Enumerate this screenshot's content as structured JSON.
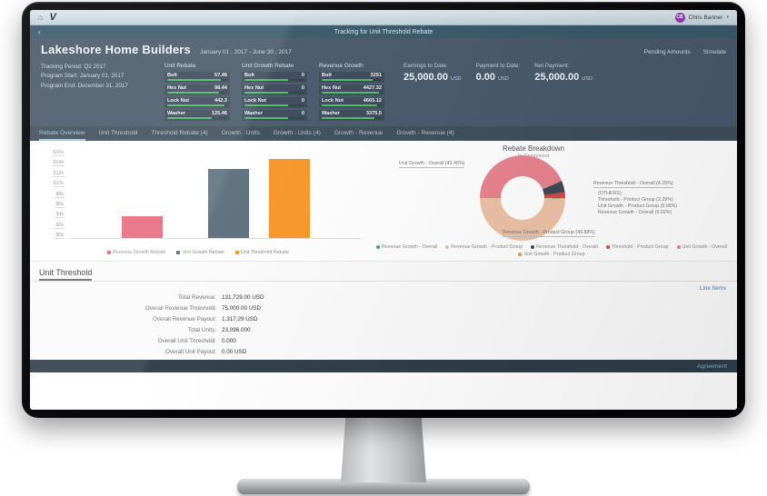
{
  "topbar": {
    "logo": "V",
    "user_initials": "CB",
    "user_name": "Chris Banner"
  },
  "titlebar": {
    "back_icon": "‹",
    "title": "Tracking for Unit Threshold Rebate"
  },
  "header": {
    "account_name": "Lakeshore Home Builders",
    "date_range": "January 01 , 2017 - June 30 , 2017",
    "action_pending": "Pending Amounts",
    "action_simulate": "Simulate",
    "tracking_period_label": "Tracking Period:",
    "tracking_period": "Q2 2017",
    "program_start_label": "Program Start:",
    "program_start": "January 01, 2017",
    "program_end_label": "Program End:",
    "program_end": "December 31, 2017",
    "panels": [
      {
        "title": "Unit Rebate",
        "rows": [
          {
            "name": "Bolt",
            "value": "57.46",
            "pct": 90
          },
          {
            "name": "Hex Nut",
            "value": "98.44",
            "pct": 86
          },
          {
            "name": "Lock Nut",
            "value": "442.3",
            "pct": 95
          },
          {
            "name": "Washer",
            "value": "125.46",
            "pct": 74
          }
        ]
      },
      {
        "title": "Unit Growth Rebate",
        "rows": [
          {
            "name": "Bolt",
            "value": "0",
            "pct": 72
          },
          {
            "name": "Hex Nut",
            "value": "0",
            "pct": 72
          },
          {
            "name": "Lock Nut",
            "value": "0",
            "pct": 72
          },
          {
            "name": "Washer",
            "value": "0",
            "pct": 72
          }
        ]
      },
      {
        "title": "Revenue Growth",
        "rows": [
          {
            "name": "Bolt",
            "value": "3251",
            "pct": 85
          },
          {
            "name": "Hex Nut",
            "value": "4427.32",
            "pct": 95
          },
          {
            "name": "Lock Nut",
            "value": "4665.12",
            "pct": 93
          },
          {
            "name": "Washer",
            "value": "3375.5",
            "pct": 88
          }
        ]
      }
    ],
    "summary": [
      {
        "label": "Earnings to Date:",
        "value": "25,000.00",
        "unit": "USD"
      },
      {
        "label": "Payment to Date:",
        "value": "0.00",
        "unit": "USD"
      },
      {
        "label": "Net Payment:",
        "value": "25,000.00",
        "unit": "USD"
      }
    ]
  },
  "tabs": [
    {
      "label": "Rebate Overview"
    },
    {
      "label": "Unit Threshold"
    },
    {
      "label": "Threshold Rebate (4)"
    },
    {
      "label": "Growth - Units"
    },
    {
      "label": "Growth - Units (4)"
    },
    {
      "label": "Growth - Revenue"
    },
    {
      "label": "Growth - Revenue (4)"
    }
  ],
  "chart_data": [
    {
      "type": "bar",
      "categories": [
        "Revenue Growth Rebate",
        "Unit Growth Rebate",
        "Unit Threshold Rebate"
      ],
      "values": [
        3900,
        12500,
        14300
      ],
      "colors": [
        "#e76a7e",
        "#5d6f7d",
        "#f89728"
      ],
      "title": "",
      "xlabel": "",
      "ylabel": "",
      "ylim": [
        0,
        16000
      ],
      "yticks": [
        "$16k",
        "$14k",
        "$12k",
        "$10k",
        "$8k",
        "$6k",
        "$4k",
        "$2k",
        "$0k"
      ],
      "grid": false,
      "legend_position": "bottom"
    },
    {
      "type": "pie",
      "title": "Rebate Breakdown",
      "subtitle": "by Component",
      "slices": [
        {
          "label": "Unit Growth - Overall",
          "pct": 43.48,
          "color": "#e8838e"
        },
        {
          "label": "Revenue Threshold - Overall",
          "pct": 4.25,
          "color": "#3f4a58"
        },
        {
          "label": "Threshold - Product Group",
          "pct": 2.29,
          "color": "#d44a4a"
        },
        {
          "label": "Unit Growth - Product Group",
          "pct": 0.08,
          "color": "#e89a4a"
        },
        {
          "label": "Revenue Growth - Overall",
          "pct": 0.02,
          "color": "#4a9b7f"
        },
        {
          "label": "Revenue Growth - Product Group",
          "pct": 49.88,
          "color": "#edc2a6"
        }
      ],
      "callouts": {
        "unit_growth_overall": "Unit Growth - Overall (43.48%)",
        "revenue_threshold_overall": "Revenue Threshold - Overall (4.25%)",
        "others_title": "(OTHERS):",
        "others": [
          "Threshold - Product Group (2.29%)",
          "Unit Growth - Product Group (0.08%)",
          "Revenue Growth - Overall (0.02%)"
        ],
        "revenue_growth_product_group": "Revenue Growth - Product Group (49.88%)"
      },
      "legend": [
        {
          "label": "Revenue Growth - Overall",
          "color": "#4a9b7f"
        },
        {
          "label": "Revenue Growth - Product Group",
          "color": "#edc2a6"
        },
        {
          "label": "Revenue Threshold - Overall",
          "color": "#3f4a58"
        },
        {
          "label": "Threshold - Product Group",
          "color": "#d44a4a"
        },
        {
          "label": "Unit Growth - Overall",
          "color": "#e8838e"
        },
        {
          "label": "Unit Growth - Product Group",
          "color": "#e89a4a"
        }
      ],
      "legend_position": "bottom"
    }
  ],
  "unit_threshold": {
    "title": "Unit Threshold",
    "line_items_link": "Line Items",
    "rows": [
      {
        "label": "Total Revenue:",
        "value": "131,729.00 USD"
      },
      {
        "label": "Overall Revenue Threshold:",
        "value": "75,000.00 USD"
      },
      {
        "label": "Overall Revenue Payout:",
        "value": "1,317.29 USD"
      },
      {
        "label": "Total Units:",
        "value": "23,096.000"
      },
      {
        "label": "Overall Unit Threshold:",
        "value": "0.000"
      },
      {
        "label": "Overall Unit Payout:",
        "value": "0.00 USD"
      }
    ]
  },
  "footer": {
    "agreement_link": "Agreement"
  }
}
